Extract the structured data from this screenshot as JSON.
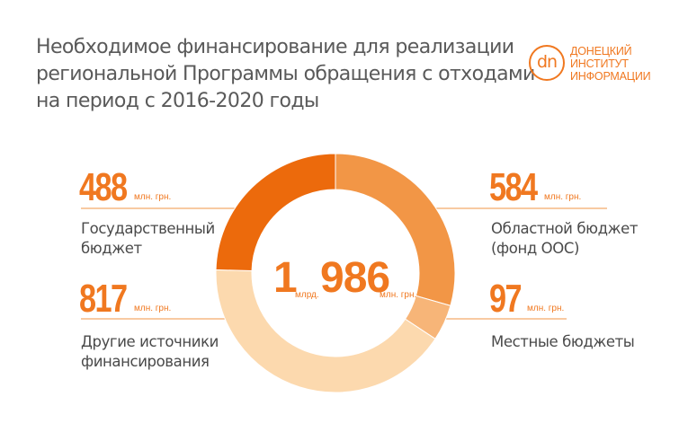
{
  "title": {
    "line1": "Необходимое финансирование для реализации",
    "line2": "региональной Программы обращения с отходами",
    "line3": "на период с 2016-2020 годы"
  },
  "logo": {
    "mark": "dn",
    "line1": "ДОНЕЦКИЙ",
    "line2": "ИНСТИТУТ",
    "line3": "ИНФОРМАЦИИ"
  },
  "colors": {
    "accent": "#f07820",
    "dark": "#ec6a0c",
    "mid": "#f29646",
    "light": "#f7b578",
    "pale": "#fcd9ae"
  },
  "total": {
    "prefix": "1",
    "prefix_unit": "млрд.",
    "value": "986",
    "unit": "млн. грн."
  },
  "chart_data": {
    "type": "pie",
    "title": "Необходимое финансирование для реализации региональной Программы обращения с отходами на период с 2016-2020 годы",
    "unit": "млн. грн.",
    "donut": true,
    "total_label": "1 млрд. 986 млн. грн.",
    "slices": [
      {
        "label": "Областной бюджет (фонд ООС)",
        "value": 584,
        "display": "584",
        "unit": "млн. грн.",
        "line1": "Областной бюджет",
        "line2": "(фонд ООС)",
        "color": "#f29646"
      },
      {
        "label": "Местные бюджеты",
        "value": 97,
        "display": "97",
        "unit": "млн. грн.",
        "line1": "Местные бюджеты",
        "line2": "",
        "color": "#f7b578"
      },
      {
        "label": "Другие источники финансирования",
        "value": 817,
        "display": "817",
        "unit": "млн. грн.",
        "line1": "Другие источники",
        "line2": "финансирования",
        "color": "#fcd9ae"
      },
      {
        "label": "Государственный бюджет",
        "value": 488,
        "display": "488",
        "unit": "млн. грн.",
        "line1": "Государственный",
        "line2": "бюджет",
        "color": "#ec6a0c"
      }
    ]
  }
}
